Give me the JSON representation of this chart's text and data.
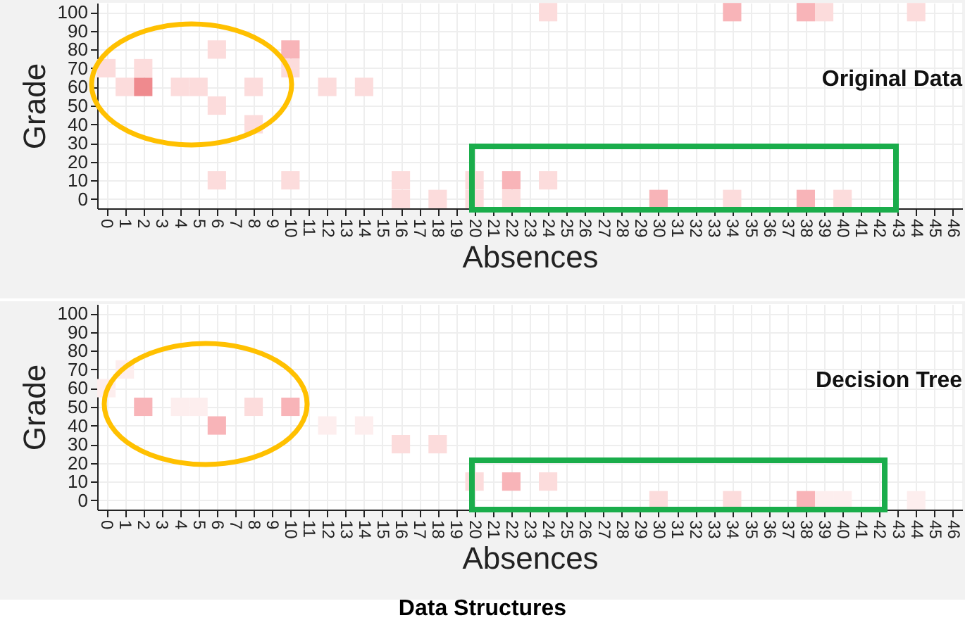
{
  "chart_data": [
    {
      "type": "scatter",
      "title": "Original Data",
      "xlabel": "Absences",
      "ylabel": "Grade",
      "marker": "square",
      "grid": true,
      "x": [
        0,
        1,
        2,
        2,
        4,
        5,
        6,
        6,
        6,
        8,
        8,
        10,
        10,
        10,
        12,
        14,
        16,
        16,
        18,
        20,
        20,
        22,
        22,
        24,
        24,
        30,
        34,
        34,
        38,
        38,
        39,
        40,
        44
      ],
      "values": [
        70,
        60,
        70,
        60,
        60,
        60,
        80,
        50,
        10,
        60,
        40,
        80,
        70,
        10,
        60,
        60,
        10,
        0,
        0,
        10,
        0,
        10,
        0,
        10,
        100,
        0,
        0,
        100,
        0,
        100,
        100,
        0,
        100
      ],
      "colors": [
        "#fcdcdc",
        "#fcdcdc",
        "#fcdcdc",
        "#ef8a8e",
        "#fcdcdc",
        "#fcdcdc",
        "#fcdcdc",
        "#fcdcdc",
        "#fcdcdc",
        "#fcdcdc",
        "#fcdcdc",
        "#f8b4b8",
        "#fcdcdc",
        "#fcdcdc",
        "#fcdcdc",
        "#fcdcdc",
        "#fcdcdc",
        "#fcdcdc",
        "#fcdcdc",
        "#fcdcdc",
        "#fcdcdc",
        "#f8b4b8",
        "#fcdcdc",
        "#fcdcdc",
        "#fcdcdc",
        "#f8b4b8",
        "#fcdcdc",
        "#f8b4b8",
        "#f8b4b8",
        "#f8b4b8",
        "#fcdcdc",
        "#fcdcdc",
        "#fcdcdc"
      ],
      "xlim": [
        -0.5,
        46.5
      ],
      "xticks": [
        0,
        1,
        2,
        3,
        4,
        5,
        6,
        7,
        8,
        9,
        10,
        11,
        12,
        13,
        14,
        15,
        16,
        17,
        18,
        19,
        20,
        21,
        22,
        23,
        24,
        25,
        26,
        27,
        28,
        29,
        30,
        31,
        32,
        33,
        34,
        35,
        36,
        37,
        38,
        39,
        40,
        41,
        42,
        43,
        44,
        45,
        46
      ],
      "ylim": [
        -5,
        105
      ],
      "yticks": [
        0,
        10,
        20,
        30,
        40,
        50,
        60,
        70,
        80,
        90,
        100
      ]
    },
    {
      "type": "scatter",
      "title": "Decision Tree",
      "xlabel": "Absences",
      "ylabel": "Grade",
      "marker": "square",
      "grid": true,
      "x": [
        0,
        1,
        2,
        4,
        5,
        6,
        8,
        10,
        12,
        14,
        16,
        18,
        20,
        22,
        24,
        30,
        34,
        38,
        39,
        40,
        44
      ],
      "values": [
        60,
        70,
        50,
        50,
        50,
        40,
        50,
        50,
        40,
        40,
        30,
        30,
        10,
        10,
        10,
        0,
        0,
        0,
        0,
        0,
        0
      ],
      "colors": [
        "#fdeeee",
        "#fdeeee",
        "#f8b4b8",
        "#fdeeee",
        "#fdeeee",
        "#f8b4b8",
        "#fcdcdc",
        "#f8b4b8",
        "#fdeeee",
        "#fdeeee",
        "#fcdcdc",
        "#fcdcdc",
        "#fcdcdc",
        "#f8b4b8",
        "#fcdcdc",
        "#fcdcdc",
        "#fcdcdc",
        "#f8b4b8",
        "#fdeeee",
        "#fdeeee",
        "#fdeeee"
      ],
      "xlim": [
        -0.5,
        46.5
      ],
      "xticks": [
        0,
        1,
        2,
        3,
        4,
        5,
        6,
        7,
        8,
        9,
        10,
        11,
        12,
        13,
        14,
        15,
        16,
        17,
        18,
        19,
        20,
        21,
        22,
        23,
        24,
        25,
        26,
        27,
        28,
        29,
        30,
        31,
        32,
        33,
        34,
        35,
        36,
        37,
        38,
        39,
        40,
        41,
        42,
        43,
        44,
        45,
        46
      ],
      "ylim": [
        -5,
        105
      ],
      "yticks": [
        0,
        10,
        20,
        30,
        40,
        50,
        60,
        70,
        80,
        90,
        100
      ],
      "annotations": [
        "Data Structures"
      ]
    }
  ]
}
